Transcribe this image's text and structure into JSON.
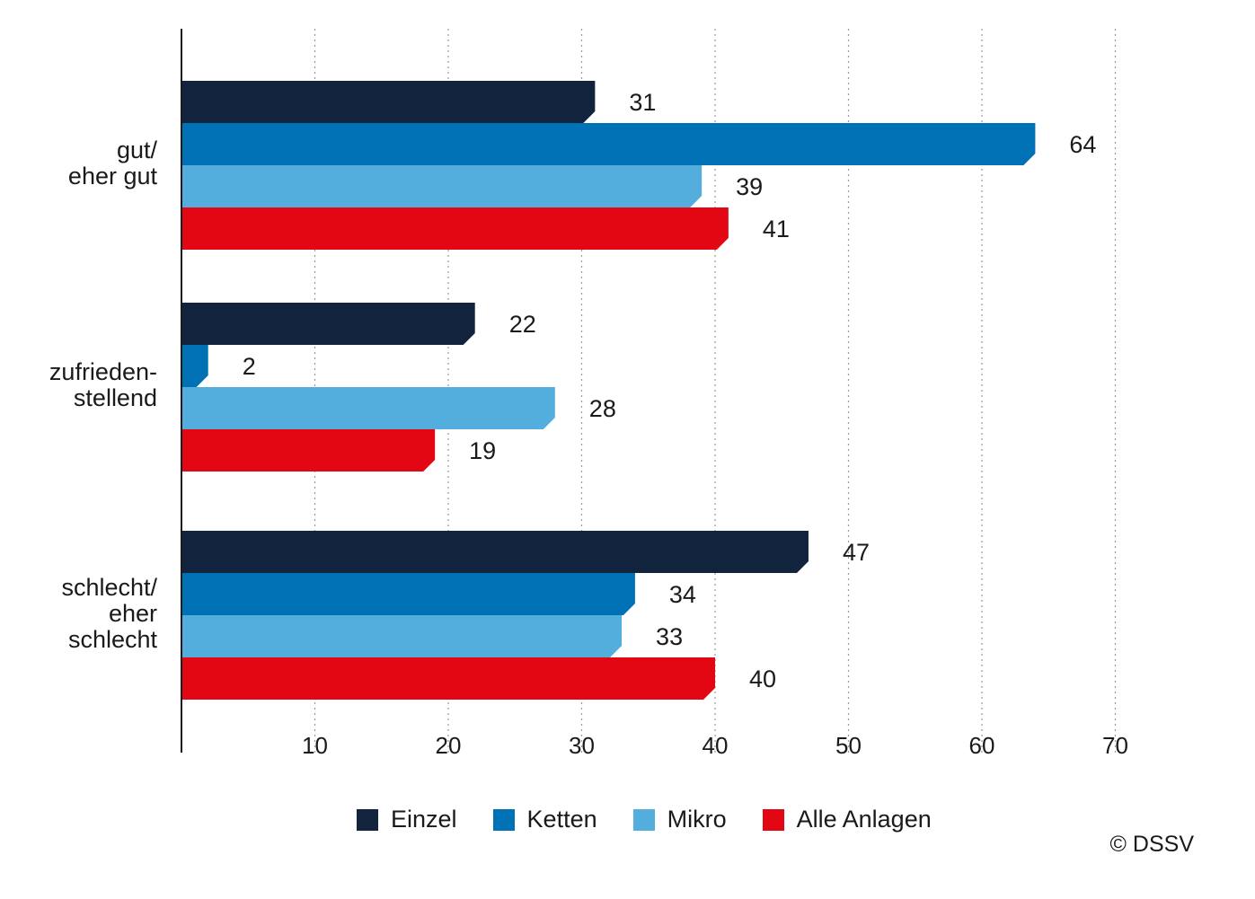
{
  "chart_data": {
    "type": "bar",
    "orientation": "horizontal",
    "categories": [
      "gut/\neher gut",
      "zufrieden-\nstellend",
      "schlecht/\neher\nschlecht"
    ],
    "series": [
      {
        "name": "Einzel",
        "color": "#11233d",
        "values": [
          31,
          22,
          47
        ]
      },
      {
        "name": "Ketten",
        "color": "#0071b4",
        "values": [
          64,
          2,
          34
        ]
      },
      {
        "name": "Mikro",
        "color": "#54aedd",
        "values": [
          39,
          28,
          33
        ]
      },
      {
        "name": "Alle Anlagen",
        "color": "#e30613",
        "values": [
          41,
          19,
          40
        ]
      }
    ],
    "xticks": [
      10,
      20,
      30,
      40,
      50,
      60,
      70
    ],
    "xlim": [
      0,
      72
    ],
    "grid": "vertical dotted",
    "legend": "bottom"
  },
  "copyright": "© DSSV"
}
